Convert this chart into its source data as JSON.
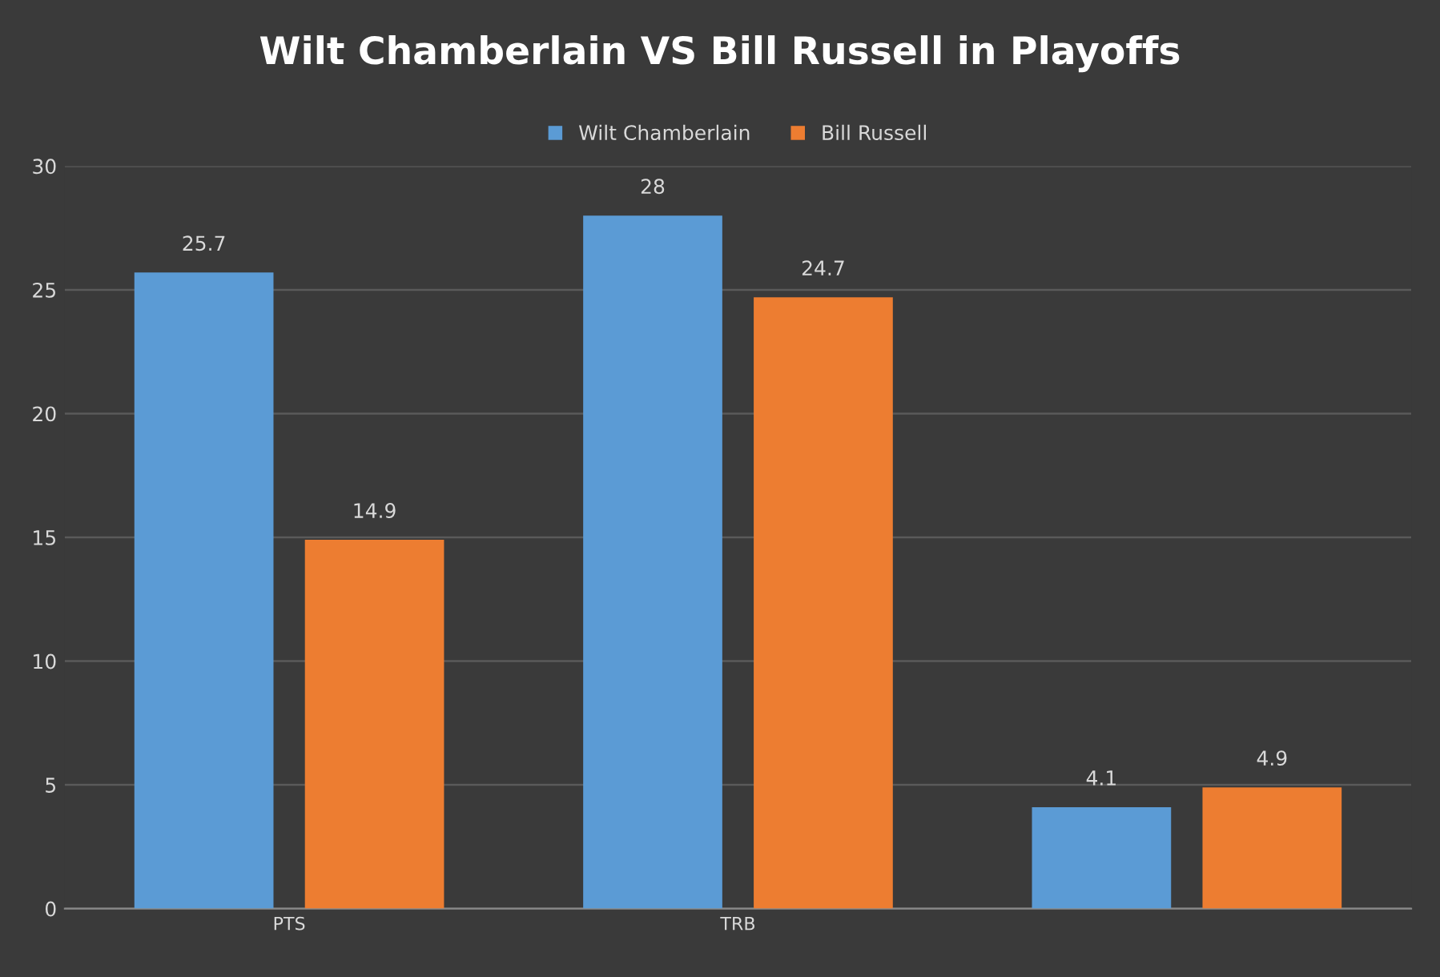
{
  "chart_data": {
    "type": "bar",
    "title": "Wilt Chamberlain VS Bill Russell in Playoffs",
    "categories": [
      "PTS",
      "TRB",
      null
    ],
    "series": [
      {
        "name": "Wilt Chamberlain",
        "color": "#5b9bd5",
        "values": [
          25.7,
          28,
          4.1
        ]
      },
      {
        "name": "Bill Russell",
        "color": "#ed7d31",
        "values": [
          14.9,
          24.7,
          4.9
        ]
      }
    ],
    "ylim": [
      0,
      30
    ],
    "yticks": [
      0,
      5,
      10,
      15,
      20,
      25,
      30
    ],
    "grid": "y",
    "legend": "top",
    "data_labels": true
  }
}
